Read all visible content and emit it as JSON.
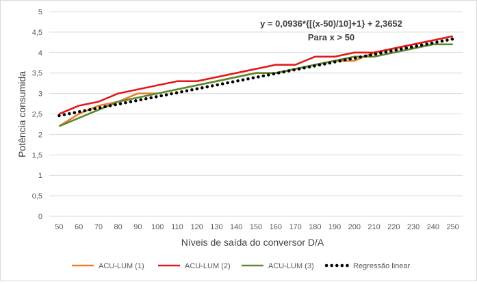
{
  "chart_data": {
    "type": "line",
    "xlabel": "Níveis de saída do conversor D/A",
    "ylabel": "Potência consumida",
    "ylim": [
      0,
      5
    ],
    "y_ticks": [
      "0",
      "0,5",
      "1",
      "1,5",
      "2",
      "2,5",
      "3",
      "3,5",
      "4",
      "4,5",
      "5"
    ],
    "y_tick_values": [
      0,
      0.5,
      1,
      1.5,
      2,
      2.5,
      3,
      3.5,
      4,
      4.5,
      5
    ],
    "categories": [
      "50",
      "60",
      "70",
      "80",
      "90",
      "100",
      "110",
      "120",
      "130",
      "140",
      "150",
      "160",
      "170",
      "180",
      "190",
      "200",
      "210",
      "220",
      "230",
      "240",
      "250"
    ],
    "grid": true,
    "legend_position": "bottom",
    "series": [
      {
        "name": "ACU-LUM (1)",
        "color": "#ed7d31",
        "style": "solid",
        "values": [
          2.2,
          2.5,
          2.7,
          2.8,
          3.0,
          3.0,
          3.1,
          3.2,
          3.3,
          3.4,
          3.5,
          3.5,
          3.6,
          3.7,
          3.8,
          3.8,
          4.0,
          4.1,
          4.2,
          4.3,
          4.4
        ]
      },
      {
        "name": "ACU-LUM (2)",
        "color": "#e31a1c",
        "style": "solid",
        "values": [
          2.5,
          2.7,
          2.8,
          3.0,
          3.1,
          3.2,
          3.3,
          3.3,
          3.4,
          3.5,
          3.6,
          3.7,
          3.7,
          3.9,
          3.9,
          4.0,
          4.0,
          4.1,
          4.2,
          4.3,
          4.4
        ]
      },
      {
        "name": "ACU-LUM (3)",
        "color": "#5a8a2e",
        "style": "solid",
        "values": [
          2.2,
          2.4,
          2.6,
          2.8,
          2.9,
          3.0,
          3.1,
          3.2,
          3.3,
          3.4,
          3.5,
          3.5,
          3.6,
          3.7,
          3.8,
          3.9,
          3.9,
          4.0,
          4.1,
          4.2,
          4.2
        ]
      },
      {
        "name": "Regressão linear",
        "color": "#000000",
        "style": "dotted",
        "values": [
          2.4588,
          2.5524,
          2.646,
          2.7396,
          2.8332,
          2.9268,
          3.0204,
          3.114,
          3.2076,
          3.3012,
          3.3948,
          3.4884,
          3.582,
          3.6756,
          3.7692,
          3.8628,
          3.9564,
          4.05,
          4.1436,
          4.2372,
          4.3308
        ]
      }
    ],
    "annotations": [
      {
        "text": "y = 0,0936*{[(x-50)/10]+1} + 2,3652"
      },
      {
        "text": "Para x > 50"
      }
    ]
  }
}
